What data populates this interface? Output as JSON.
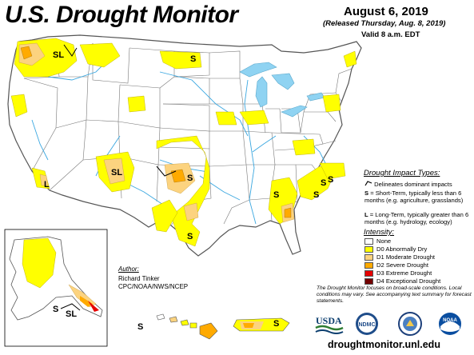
{
  "header": {
    "title": "U.S. Drought Monitor",
    "date": "August 6, 2019",
    "released": "(Released Thursday, Aug. 8, 2019)",
    "valid": "Valid 8 a.m. EDT"
  },
  "impact_types": {
    "title": "Drought Impact Types:",
    "line_label": "Delineates dominant impacts",
    "s_key": "S",
    "s_desc": " = Short-Term, typically less than 6 months (e.g. agriculture, grasslands)",
    "l_key": "L",
    "l_desc": " = Long-Term, typically greater than 6 months (e.g. hydrology, ecology)"
  },
  "intensity": {
    "title": "Intensity:",
    "levels": [
      {
        "label": "None",
        "color": "#ffffff"
      },
      {
        "label": "D0 Abnormally Dry",
        "color": "#ffff00"
      },
      {
        "label": "D1 Moderate Drought",
        "color": "#fcd37f"
      },
      {
        "label": "D2 Severe Drought",
        "color": "#ffaa00"
      },
      {
        "label": "D3 Extreme Drought",
        "color": "#e60000"
      },
      {
        "label": "D4 Exceptional Drought",
        "color": "#730000"
      }
    ]
  },
  "author": {
    "title": "Author:",
    "name": "Richard Tinker",
    "org": "CPC/NOAA/NWS/NCEP"
  },
  "disclaimer": "The Drought Monitor focuses on broad-scale conditions. Local conditions may vary. See accompanying text summary for forecast statements.",
  "url": "droughtmonitor.unl.edu",
  "logos": {
    "usda": "USDA",
    "ndmc": "NDMC",
    "doc": "",
    "noaa": "NOAA"
  },
  "map_labels": [
    {
      "id": "pnw",
      "text": "SL"
    },
    {
      "id": "mt",
      "text": "S"
    },
    {
      "id": "nm",
      "text": "SL"
    },
    {
      "id": "ok",
      "text": "S"
    },
    {
      "id": "ca",
      "text": "L"
    },
    {
      "id": "tx",
      "text": "S"
    },
    {
      "id": "al",
      "text": "S"
    },
    {
      "id": "ga",
      "text": "S"
    },
    {
      "id": "sc",
      "text": "S"
    },
    {
      "id": "nc",
      "text": "S"
    },
    {
      "id": "ak1",
      "text": "S"
    },
    {
      "id": "ak2",
      "text": "SL"
    },
    {
      "id": "hi",
      "text": "S"
    },
    {
      "id": "pr",
      "text": "S"
    }
  ],
  "colors": {
    "water": "#8fd3f2",
    "river": "#3aa7e0",
    "border": "#555555"
  }
}
